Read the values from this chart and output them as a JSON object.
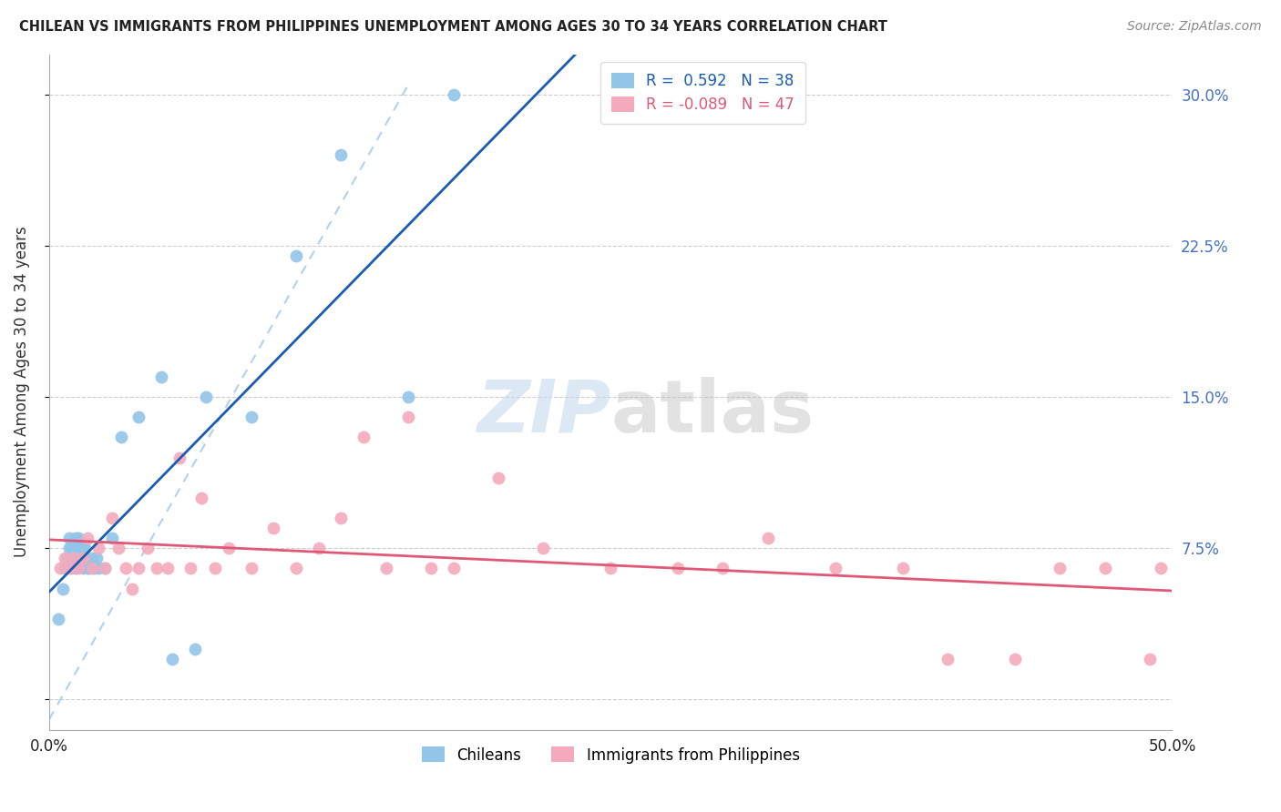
{
  "title": "CHILEAN VS IMMIGRANTS FROM PHILIPPINES UNEMPLOYMENT AMONG AGES 30 TO 34 YEARS CORRELATION CHART",
  "source": "Source: ZipAtlas.com",
  "ylabel": "Unemployment Among Ages 30 to 34 years",
  "xlim": [
    0.0,
    0.5
  ],
  "ylim": [
    -0.015,
    0.32
  ],
  "yticks": [
    0.0,
    0.075,
    0.15,
    0.225,
    0.3
  ],
  "ytick_labels": [
    "",
    "7.5%",
    "15.0%",
    "22.5%",
    "30.0%"
  ],
  "xticks": [
    0.0,
    0.05,
    0.1,
    0.15,
    0.2,
    0.25,
    0.3,
    0.35,
    0.4,
    0.45,
    0.5
  ],
  "xtick_labels": [
    "0.0%",
    "",
    "",
    "",
    "",
    "",
    "",
    "",
    "",
    "",
    "50.0%"
  ],
  "chilean_R": 0.592,
  "chilean_N": 38,
  "philippine_R": -0.089,
  "philippine_N": 47,
  "blue_scatter_color": "#92C5E8",
  "pink_scatter_color": "#F4AABC",
  "blue_line_color": "#1A5CB0",
  "pink_line_color": "#E05878",
  "dashed_line_color": "#AACCEE",
  "grid_color": "#CCCCCC",
  "spine_color": "#AAAAAA",
  "title_color": "#222222",
  "ylabel_color": "#333333",
  "source_color": "#888888",
  "tick_color_y": "#4472C4",
  "tick_color_x": "#222222",
  "watermark_zip_color": "#C0D8EE",
  "watermark_atlas_color": "#C0C0C0",
  "legend_box_color": "#DDDDDD",
  "chileans_x": [
    0.004,
    0.006,
    0.007,
    0.008,
    0.009,
    0.009,
    0.01,
    0.01,
    0.011,
    0.011,
    0.012,
    0.012,
    0.013,
    0.013,
    0.014,
    0.015,
    0.015,
    0.016,
    0.016,
    0.017,
    0.018,
    0.019,
    0.02,
    0.021,
    0.022,
    0.025,
    0.028,
    0.032,
    0.04,
    0.05,
    0.055,
    0.065,
    0.07,
    0.09,
    0.11,
    0.13,
    0.16,
    0.18
  ],
  "chileans_y": [
    0.04,
    0.055,
    0.065,
    0.07,
    0.075,
    0.08,
    0.065,
    0.075,
    0.07,
    0.075,
    0.065,
    0.08,
    0.07,
    0.08,
    0.075,
    0.065,
    0.075,
    0.07,
    0.075,
    0.065,
    0.065,
    0.07,
    0.065,
    0.07,
    0.065,
    0.065,
    0.08,
    0.13,
    0.14,
    0.16,
    0.02,
    0.025,
    0.15,
    0.14,
    0.22,
    0.27,
    0.15,
    0.3
  ],
  "philippine_x": [
    0.005,
    0.007,
    0.009,
    0.011,
    0.013,
    0.015,
    0.017,
    0.019,
    0.022,
    0.025,
    0.028,
    0.031,
    0.034,
    0.037,
    0.04,
    0.044,
    0.048,
    0.053,
    0.058,
    0.063,
    0.068,
    0.074,
    0.08,
    0.09,
    0.1,
    0.11,
    0.12,
    0.13,
    0.14,
    0.15,
    0.16,
    0.17,
    0.18,
    0.2,
    0.22,
    0.25,
    0.28,
    0.3,
    0.32,
    0.35,
    0.38,
    0.4,
    0.43,
    0.45,
    0.47,
    0.49,
    0.495
  ],
  "philippine_y": [
    0.065,
    0.07,
    0.065,
    0.07,
    0.065,
    0.07,
    0.08,
    0.065,
    0.075,
    0.065,
    0.09,
    0.075,
    0.065,
    0.055,
    0.065,
    0.075,
    0.065,
    0.065,
    0.12,
    0.065,
    0.1,
    0.065,
    0.075,
    0.065,
    0.085,
    0.065,
    0.075,
    0.09,
    0.13,
    0.065,
    0.14,
    0.065,
    0.065,
    0.11,
    0.075,
    0.065,
    0.065,
    0.065,
    0.08,
    0.065,
    0.065,
    0.02,
    0.02,
    0.065,
    0.065,
    0.02,
    0.065
  ]
}
